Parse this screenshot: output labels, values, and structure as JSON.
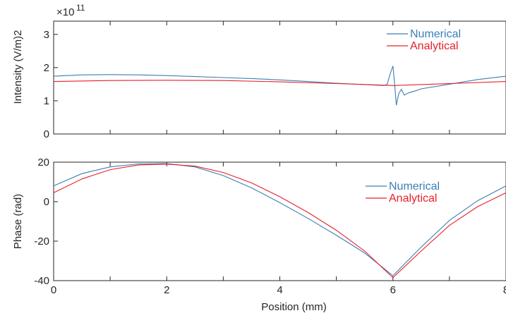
{
  "chart_data": [
    {
      "type": "line",
      "ylabel": "Intensity (V/m)2",
      "exponent_base": "×10",
      "exponent_power": "11",
      "xlim": [
        0,
        8
      ],
      "ylim": [
        0,
        3.4
      ],
      "xticks": [
        0,
        2,
        4,
        6,
        8
      ],
      "yticks": [
        0,
        1,
        2,
        3
      ],
      "ytick_labels": [
        "0",
        "1",
        "2",
        "3"
      ],
      "legend_position": "top-right",
      "series": [
        {
          "name": "Numerical",
          "color": "#3a7fb5",
          "x": [
            0,
            0.5,
            1,
            1.5,
            2,
            2.5,
            3,
            3.5,
            4,
            4.5,
            5,
            5.5,
            5.85,
            5.9,
            5.95,
            6.0,
            6.03,
            6.06,
            6.1,
            6.15,
            6.2,
            6.25,
            6.3,
            6.4,
            6.5,
            7,
            7.5,
            8
          ],
          "y": [
            1.74,
            1.78,
            1.79,
            1.78,
            1.76,
            1.73,
            1.7,
            1.67,
            1.63,
            1.58,
            1.53,
            1.49,
            1.46,
            1.5,
            1.8,
            2.05,
            1.5,
            0.87,
            1.2,
            1.35,
            1.17,
            1.22,
            1.25,
            1.3,
            1.36,
            1.5,
            1.64,
            1.74
          ]
        },
        {
          "name": "Analytical",
          "color": "#e8202a",
          "x": [
            0,
            1,
            2,
            3,
            4,
            5,
            6,
            7,
            8
          ],
          "y": [
            1.58,
            1.61,
            1.62,
            1.61,
            1.57,
            1.52,
            1.46,
            1.52,
            1.58
          ]
        }
      ]
    },
    {
      "type": "line",
      "ylabel": "Phase (rad)",
      "xlabel": "Position (mm)",
      "xlim": [
        0,
        8
      ],
      "ylim": [
        -40,
        20
      ],
      "xticks": [
        0,
        2,
        4,
        6,
        8
      ],
      "xtick_labels": [
        "0",
        "2",
        "4",
        "6",
        "8"
      ],
      "yticks": [
        -40,
        -20,
        0,
        20
      ],
      "ytick_labels": [
        "-40",
        "-20",
        "0",
        "20"
      ],
      "legend_position": "top-right",
      "series": [
        {
          "name": "Numerical",
          "color": "#3a7fb5",
          "x": [
            0,
            0.5,
            1,
            1.5,
            2,
            2.5,
            3,
            3.5,
            4,
            4.5,
            5,
            5.5,
            6,
            6.5,
            7,
            7.5,
            8
          ],
          "y": [
            8,
            14.2,
            17.6,
            19.1,
            19.3,
            17.6,
            13.2,
            7,
            -0.5,
            -8.5,
            -17,
            -26,
            -37.5,
            -23,
            -9.5,
            0.5,
            8
          ]
        },
        {
          "name": "Analytical",
          "color": "#e8202a",
          "x": [
            0,
            0.5,
            1,
            1.5,
            2,
            2.5,
            3,
            3.5,
            4,
            4.5,
            5,
            5.5,
            6,
            6.5,
            7,
            7.5,
            8
          ],
          "y": [
            4.5,
            11.5,
            16.2,
            18.6,
            19.0,
            18.0,
            14.8,
            9.5,
            2.5,
            -5.5,
            -14.5,
            -25,
            -38.5,
            -25,
            -12,
            -2.5,
            4.5
          ]
        }
      ]
    }
  ]
}
